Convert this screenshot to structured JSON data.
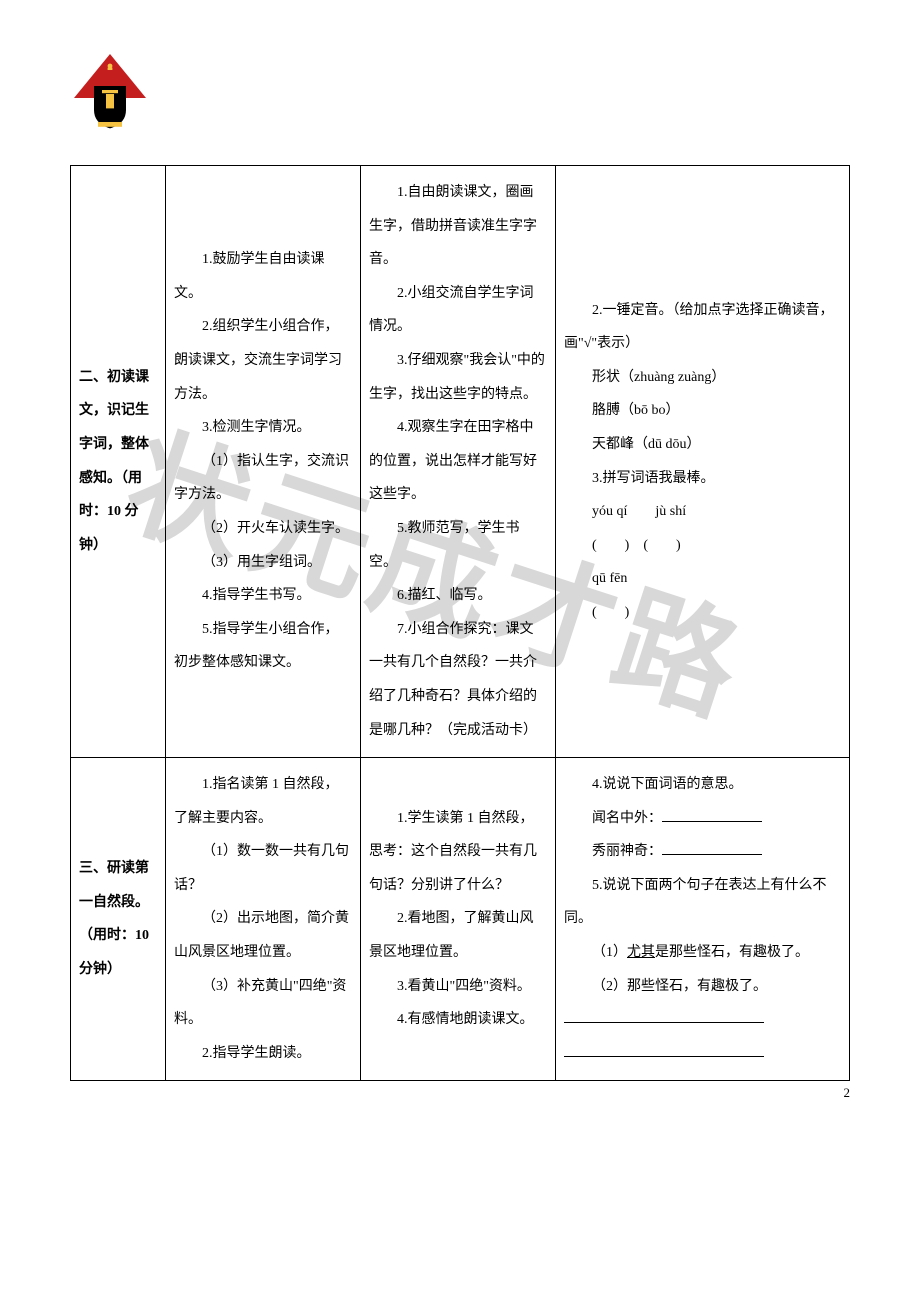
{
  "watermark": "状元成才路",
  "pageNumber": "2",
  "logo": {
    "description": "shield-crest-icon",
    "colors": {
      "triangle": "#c41e1e",
      "shield": "#000000",
      "accent": "#f5c242"
    }
  },
  "table": {
    "rows": [
      {
        "col1": "二、初读课文，识记生字词，整体感知。（用时：10 分钟）",
        "col2": [
          {
            "cls": "indent",
            "text": "1.鼓励学生自由读课文。"
          },
          {
            "cls": "indent",
            "text": "2.组织学生小组合作，朗读课文，交流生字词学习方法。"
          },
          {
            "cls": "indent",
            "text": "3.检测生字情况。"
          },
          {
            "cls": "indent",
            "text": "（1）指认生字，交流识字方法。"
          },
          {
            "cls": "indent",
            "text": "（2）开火车认读生字。"
          },
          {
            "cls": "indent",
            "text": "（3）用生字组词。"
          },
          {
            "cls": "indent",
            "text": "4.指导学生书写。"
          },
          {
            "cls": "indent",
            "text": "5.指导学生小组合作，初步整体感知课文。"
          }
        ],
        "col3": [
          {
            "cls": "indent",
            "text": "1.自由朗读课文，圈画生字，借助拼音读准生字字音。"
          },
          {
            "cls": "indent",
            "text": "2.小组交流自学生字词情况。"
          },
          {
            "cls": "indent",
            "text": "3.仔细观察\"我会认\"中的生字，找出这些字的特点。"
          },
          {
            "cls": "indent",
            "text": "4.观察生字在田字格中的位置，说出怎样才能写好这些字。"
          },
          {
            "cls": "indent",
            "text": "5.教师范写，学生书空。"
          },
          {
            "cls": "indent",
            "text": "6.描红、临写。"
          },
          {
            "cls": "indent",
            "text": "7.小组合作探究：课文一共有几个自然段？一共介绍了几种奇石？具体介绍的是哪几种？（完成活动卡）"
          }
        ],
        "col4": {
          "intro": "2.一锤定音。（给加点字选择正确读音，画\"√\"表示）",
          "items": [
            "形状（zhuàng zuàng）",
            "胳膊（bō bo）",
            "天都峰（dū dōu）"
          ],
          "section3_title": "3.拼写词语我最棒。",
          "pinyin_row1": "yóu qí  jù shí",
          "paren_row1": "(  ) (  )",
          "pinyin_row2": "qū fēn",
          "paren_row2": "(  )"
        }
      },
      {
        "col1": "三、研读第一自然段。（用时：10 分钟）",
        "col2": [
          {
            "cls": "indent",
            "text": "1.指名读第 1 自然段，了解主要内容。"
          },
          {
            "cls": "indent",
            "text": "（1）数一数一共有几句话？"
          },
          {
            "cls": "indent",
            "text": "（2）出示地图，简介黄山风景区地理位置。"
          },
          {
            "cls": "indent",
            "text": "（3）补充黄山\"四绝\"资料。"
          },
          {
            "cls": "indent",
            "text": "2.指导学生朗读。"
          }
        ],
        "col3": [
          {
            "cls": "indent",
            "text": "1.学生读第 1 自然段，思考：这个自然段一共有几句话？分别讲了什么？"
          },
          {
            "cls": "indent",
            "text": "2.看地图，了解黄山风景区地理位置。"
          },
          {
            "cls": "indent",
            "text": "3.看黄山\"四绝\"资料。"
          },
          {
            "cls": "indent",
            "text": "4.有感情地朗读课文。"
          }
        ],
        "col4": {
          "q4": "4.说说下面词语的意思。",
          "q4_items": [
            "闻名中外：",
            "秀丽神奇："
          ],
          "q5": "5.说说下面两个句子在表达上有什么不同。",
          "q5_items": [
            {
              "prefix": "（1）",
              "underlined": "尤其",
              "suffix": "是那些怪石，有趣极了。"
            },
            {
              "prefix": "（2）",
              "underlined": "",
              "suffix": "那些怪石，有趣极了。"
            }
          ]
        }
      }
    ]
  }
}
